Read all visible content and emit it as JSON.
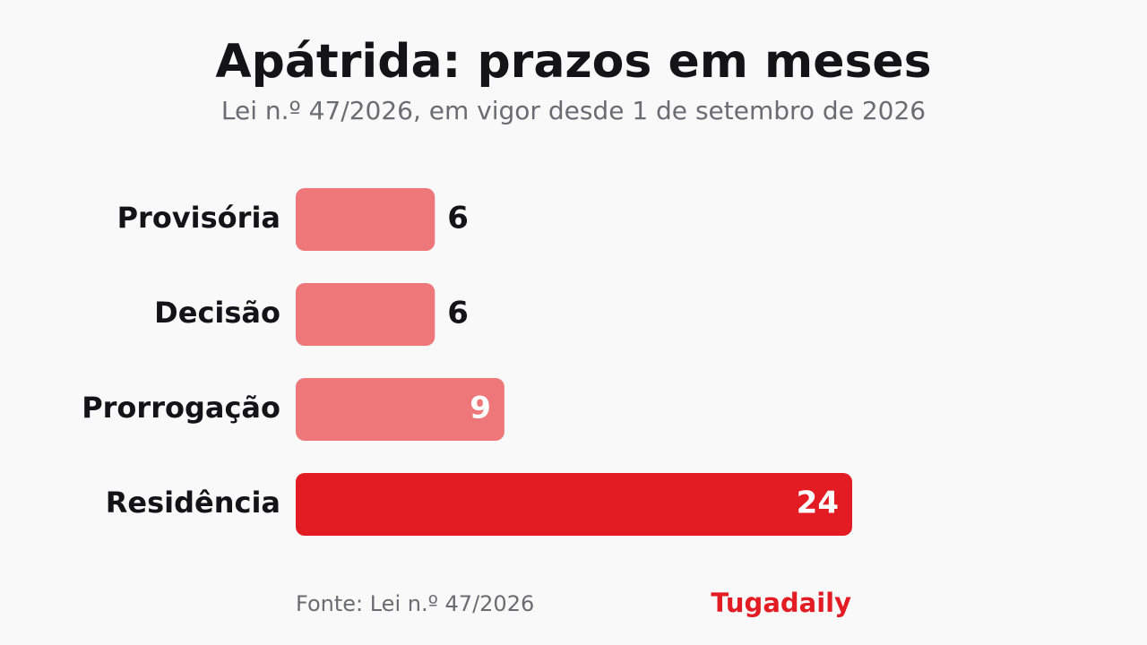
{
  "chart_data": {
    "type": "bar",
    "orientation": "horizontal",
    "title": "Apátrida: prazos em meses",
    "subtitle": "Lei n.º 47/2026, em vigor desde 1 de setembro de 2026",
    "categories": [
      "Provisória",
      "Decisão",
      "Prorrogação",
      "Residência"
    ],
    "values": [
      6,
      6,
      9,
      24
    ],
    "colors": [
      "#ee777a",
      "#ee777a",
      "#ee777a",
      "#e31b23"
    ],
    "source": "Fonte: Lei n.º 47/2026",
    "brand": "Tugadaily"
  }
}
